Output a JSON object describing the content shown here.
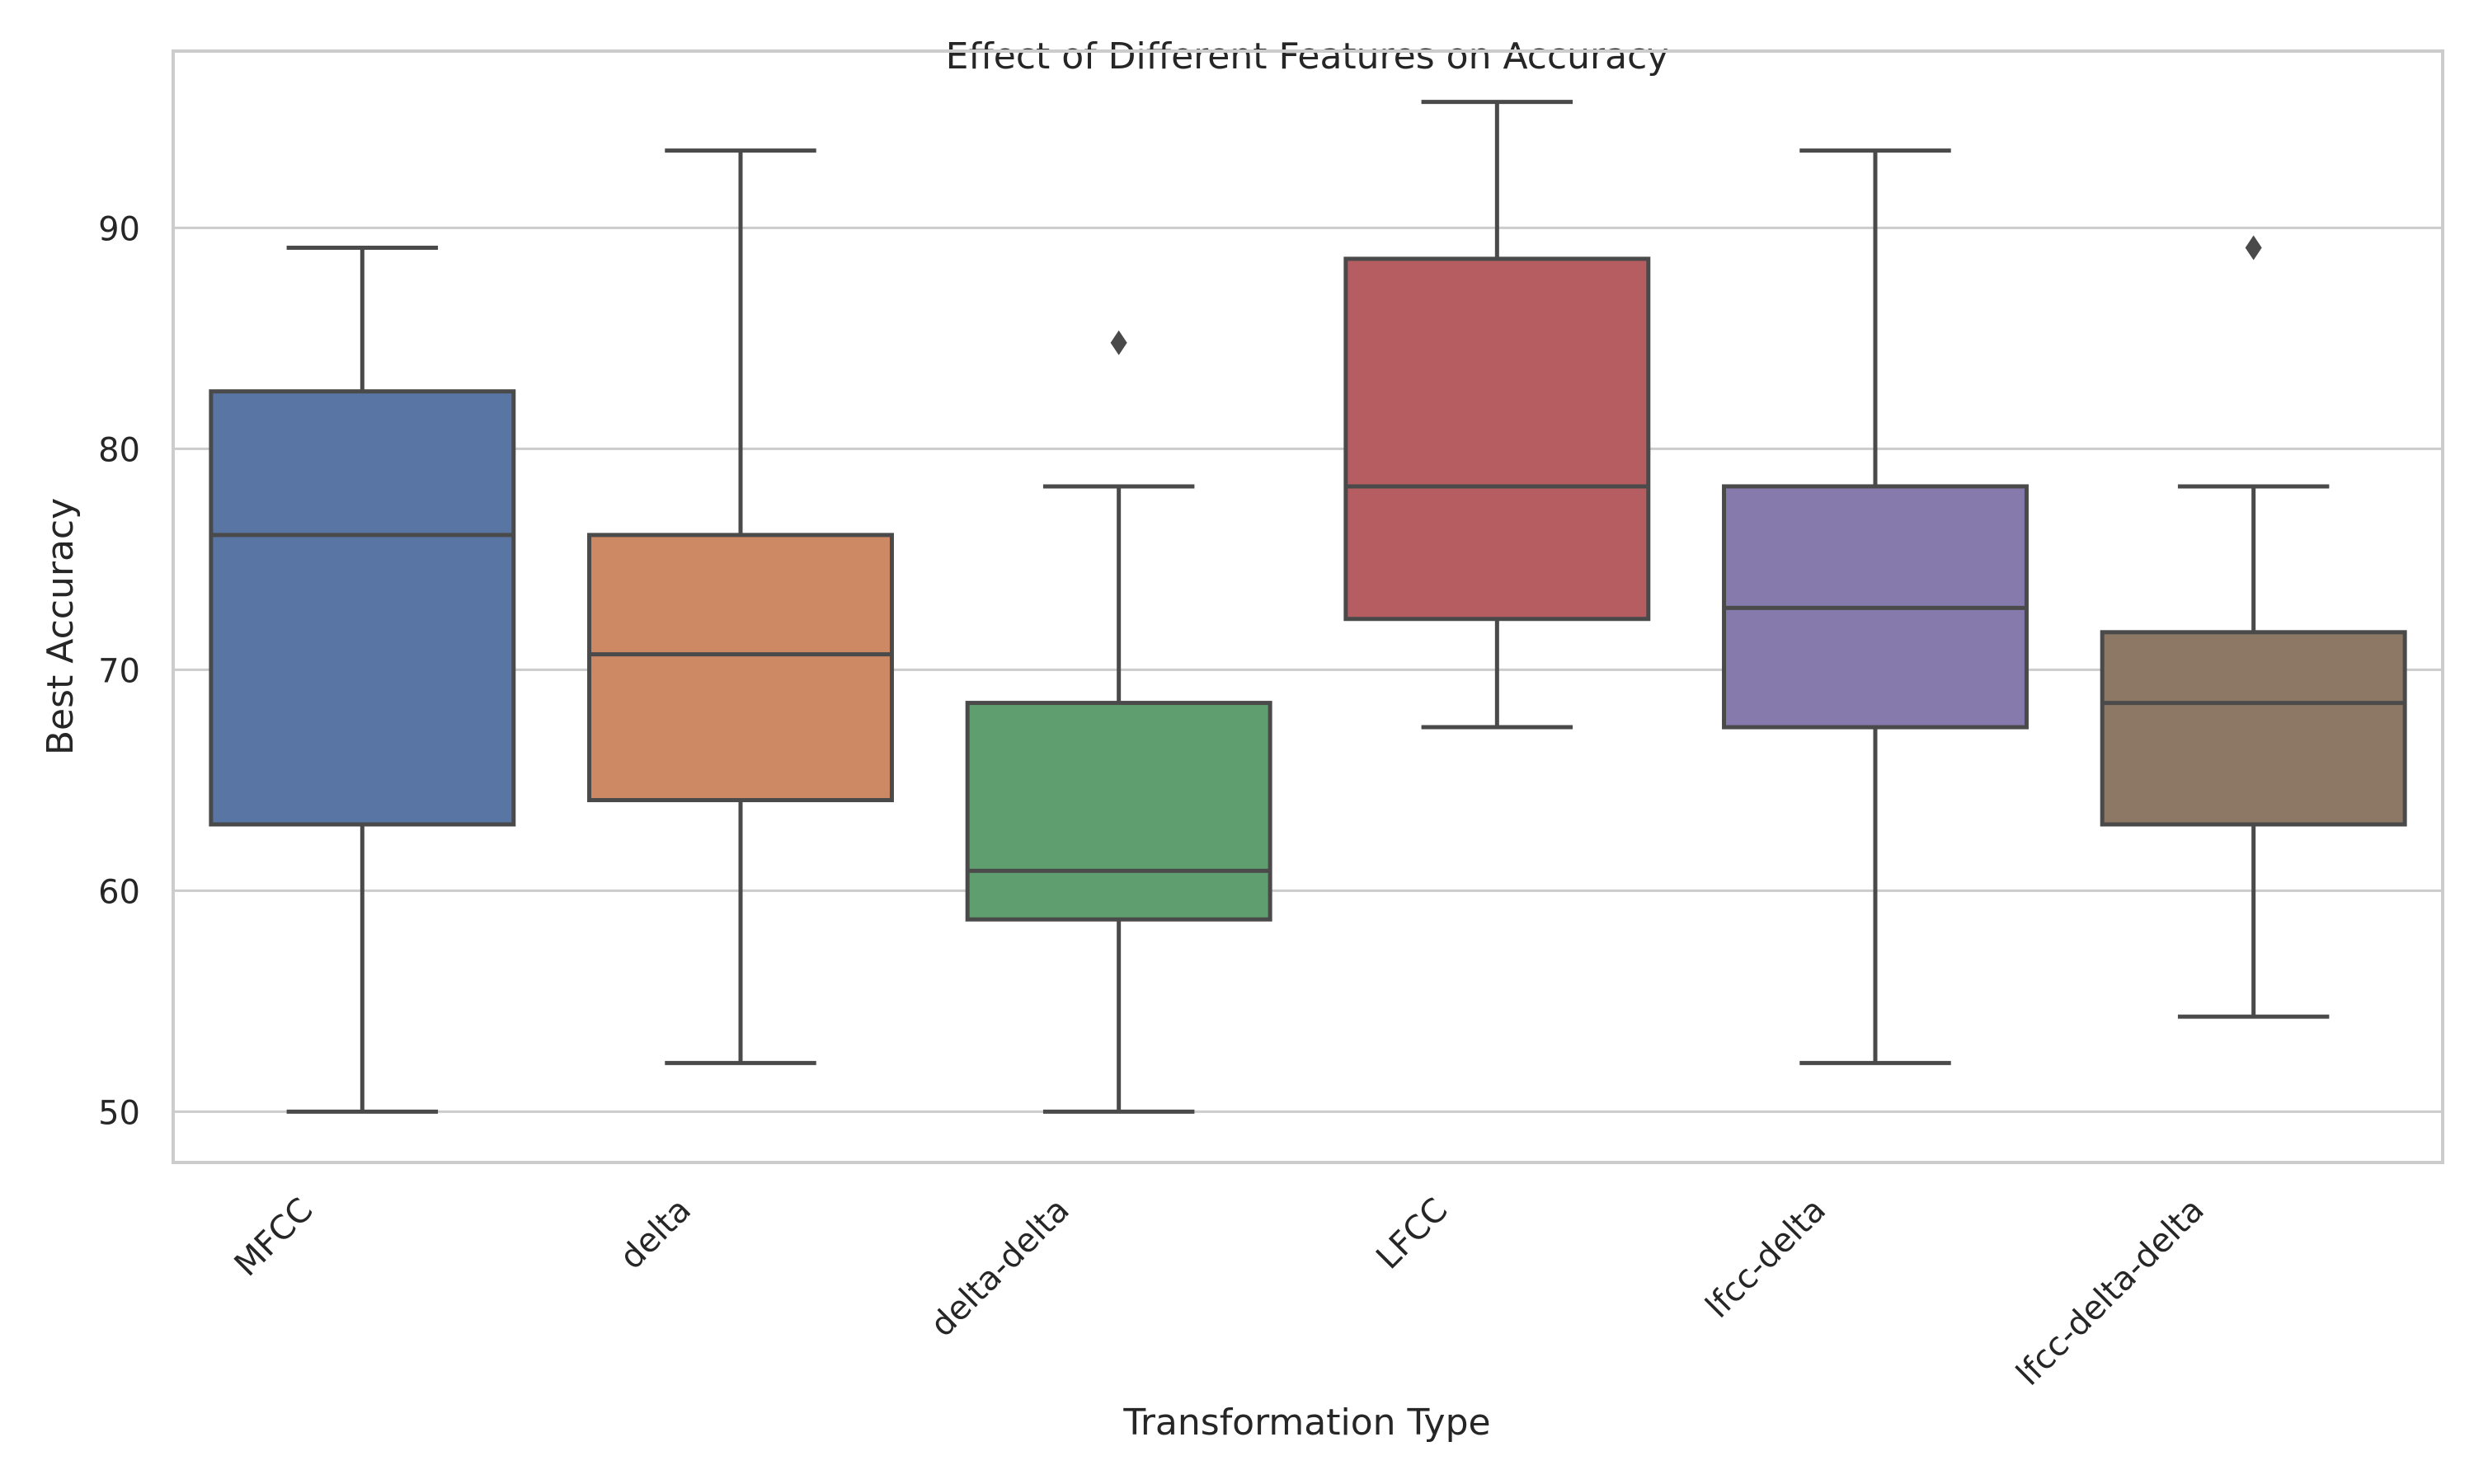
{
  "chart_data": {
    "type": "box",
    "title": "Effect of Different Features on Accuracy",
    "xlabel": "Transformation Type",
    "ylabel": "Best Accuracy",
    "categories": [
      "MFCC",
      "delta",
      "delta-delta",
      "LFCC",
      "lfcc-delta",
      "lfcc-delta-delta"
    ],
    "boxes": [
      {
        "category": "MFCC",
        "whisker_low": 50.0,
        "q1": 63.0,
        "median": 76.1,
        "q3": 82.6,
        "whisker_high": 89.1,
        "outliers": [],
        "color": "#5875a4"
      },
      {
        "category": "delta",
        "whisker_low": 52.2,
        "q1": 64.1,
        "median": 70.7,
        "q3": 76.1,
        "whisker_high": 93.5,
        "outliers": [],
        "color": "#cc8963"
      },
      {
        "category": "delta-delta",
        "whisker_low": 50.0,
        "q1": 58.7,
        "median": 60.9,
        "q3": 68.5,
        "whisker_high": 78.3,
        "outliers": [
          84.8
        ],
        "color": "#5f9e6e"
      },
      {
        "category": "LFCC",
        "whisker_low": 67.4,
        "q1": 72.3,
        "median": 78.3,
        "q3": 88.6,
        "whisker_high": 95.7,
        "outliers": [],
        "color": "#b55d60"
      },
      {
        "category": "lfcc-delta",
        "whisker_low": 52.2,
        "q1": 67.4,
        "median": 72.8,
        "q3": 78.3,
        "whisker_high": 93.5,
        "outliers": [],
        "color": "#857aab"
      },
      {
        "category": "lfcc-delta-delta",
        "whisker_low": 54.3,
        "q1": 63.0,
        "median": 68.5,
        "q3": 71.7,
        "whisker_high": 78.3,
        "outliers": [
          89.1
        ],
        "color": "#8d7866"
      }
    ],
    "y_ticks": [
      50,
      60,
      70,
      80,
      90
    ],
    "ylim": [
      47.7,
      98.0
    ],
    "grid": "horizontal",
    "line_color": "#4a4a4a",
    "grid_color": "#cccccc",
    "spine_color": "#cccccc"
  }
}
